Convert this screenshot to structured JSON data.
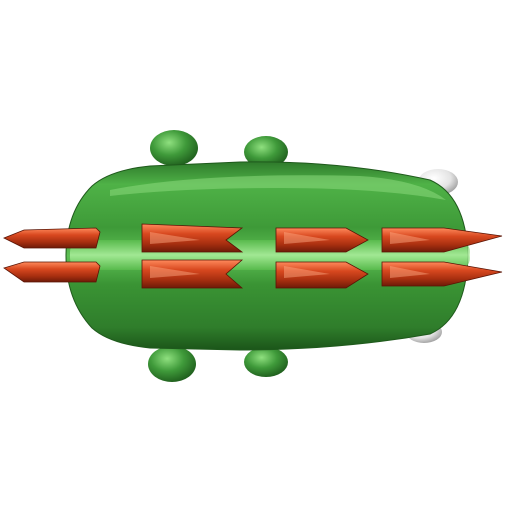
{
  "scene": {
    "subject": "green-creature-with-red-spikes-top-view",
    "colors": {
      "background": "#ffffff",
      "body_green": "#3f9a3a",
      "body_green_light": "#8fe07f",
      "body_green_dark": "#1d5a1b",
      "spike_red": "#c8401e",
      "spike_red_light": "#ff8a60",
      "spike_red_dark": "#6e1a08",
      "eye_white": "#e8e8e8"
    }
  }
}
